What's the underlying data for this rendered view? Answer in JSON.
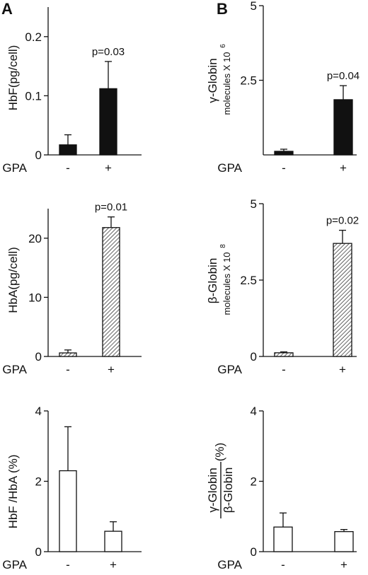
{
  "figure": {
    "panel_a_letter": "A",
    "panel_b_letter": "B"
  },
  "colors": {
    "filled": "#111111",
    "hatched_fill": "#ffffff",
    "hatch_stroke": "#111111",
    "open": "#ffffff"
  },
  "chart_data": [
    {
      "id": "a-hbf",
      "type": "bar",
      "fill": "filled",
      "ylabel": "HbF(pg/cell)",
      "yticks": [
        "0",
        "0.1",
        "0.2"
      ],
      "tickvals": [
        0,
        0.1,
        0.2
      ],
      "ylim": [
        0,
        0.25
      ],
      "xlabel": "GPA",
      "categories": [
        "-",
        "+"
      ],
      "values": [
        0.017,
        0.112
      ],
      "errors": [
        0.017,
        0.046
      ],
      "annotation": "p=0.03"
    },
    {
      "id": "a-hba",
      "type": "bar",
      "fill": "hatched",
      "ylabel": "HbA(pg/cell)",
      "yticks": [
        "0",
        "10",
        "20"
      ],
      "tickvals": [
        0,
        10,
        20
      ],
      "ylim": [
        0,
        25
      ],
      "xlabel": "GPA",
      "categories": [
        "-",
        "+"
      ],
      "values": [
        0.6,
        21.8
      ],
      "errors": [
        0.5,
        1.8
      ],
      "annotation": "p=0.01"
    },
    {
      "id": "a-ratio",
      "type": "bar",
      "fill": "open",
      "ylabel": "HbF /HbA (%)",
      "yticks": [
        "0",
        "2",
        "4"
      ],
      "tickvals": [
        0,
        2,
        4
      ],
      "ylim": [
        0,
        4
      ],
      "xlabel": "GPA",
      "categories": [
        "-",
        "+"
      ],
      "values": [
        2.3,
        0.58
      ],
      "errors": [
        1.25,
        0.27
      ],
      "annotation": ""
    },
    {
      "id": "b-gamma",
      "type": "bar",
      "fill": "filled",
      "ylabel": "γ-Globin",
      "ylabel2": "molecules X 10",
      "ylabel2_exp": "6",
      "yticks": [
        "2.5",
        "5"
      ],
      "tickvals": [
        2.5,
        5
      ],
      "ylim": [
        0,
        5
      ],
      "xlabel": "GPA",
      "categories": [
        "-",
        "+"
      ],
      "values": [
        0.12,
        1.85
      ],
      "errors": [
        0.07,
        0.47
      ],
      "annotation": "p=0.04"
    },
    {
      "id": "b-beta",
      "type": "bar",
      "fill": "hatched",
      "ylabel": "β-Globin",
      "ylabel2": "molecules X 10",
      "ylabel2_exp": "8",
      "yticks": [
        "0",
        "2.5",
        "5"
      ],
      "tickvals": [
        0,
        2.5,
        5
      ],
      "ylim": [
        0,
        5
      ],
      "xlabel": "GPA",
      "categories": [
        "-",
        "+"
      ],
      "values": [
        0.12,
        3.7
      ],
      "errors": [
        0.03,
        0.43
      ],
      "annotation": "p=0.02"
    },
    {
      "id": "b-ratio",
      "type": "bar",
      "fill": "open",
      "ylabel_num": "γ-Globin",
      "ylabel_den": "β-Globin",
      "ylabel_pct": "(%)",
      "yticks": [
        "0",
        "2",
        "4"
      ],
      "tickvals": [
        0,
        2,
        4
      ],
      "ylim": [
        0,
        4
      ],
      "xlabel": "GPA",
      "categories": [
        "-",
        "+"
      ],
      "values": [
        0.7,
        0.57
      ],
      "errors": [
        0.4,
        0.06
      ],
      "annotation": ""
    }
  ]
}
